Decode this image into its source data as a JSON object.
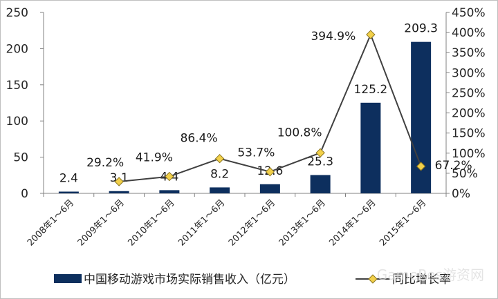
{
  "chart_data": {
    "type": "bar+line",
    "categories": [
      "2008年1～6月",
      "2009年1～6月",
      "2010年1～6月",
      "2011年1～6月",
      "2012年1～6月",
      "2013年1～6月",
      "2014年1～6月",
      "2015年1～6月"
    ],
    "series": [
      {
        "name": "中国移动游戏市场实际销售收入（亿元）",
        "type": "bar",
        "axis": "left",
        "values": [
          2.4,
          3.1,
          4.4,
          8.2,
          12.6,
          25.3,
          125.2,
          209.3
        ],
        "labels": [
          "2.4",
          "3.1",
          "4.4",
          "8.2",
          "12.6",
          "25.3",
          "125.2",
          "209.3"
        ],
        "color": "#0d2f5e"
      },
      {
        "name": "同比增长率",
        "type": "line",
        "axis": "right",
        "values": [
          null,
          29.2,
          41.9,
          86.4,
          53.7,
          100.8,
          394.9,
          67.2
        ],
        "labels": [
          "",
          "29.2%",
          "41.9%",
          "86.4%",
          "53.7%",
          "100.8%",
          "394.9%",
          "67.2%"
        ],
        "color": "#404040",
        "marker_color": "#f2d04a"
      }
    ],
    "ylim_left": [
      0,
      250
    ],
    "yticks_left": [
      "0",
      "50",
      "100",
      "150",
      "200",
      "250"
    ],
    "ylim_right": [
      0,
      450
    ],
    "yticks_right": [
      "0%",
      "50%",
      "100%",
      "150%",
      "200%",
      "250%",
      "300%",
      "350%",
      "400%",
      "450%"
    ],
    "grid": false,
    "legend_position": "bottom"
  },
  "watermark": "GameRes游资网"
}
